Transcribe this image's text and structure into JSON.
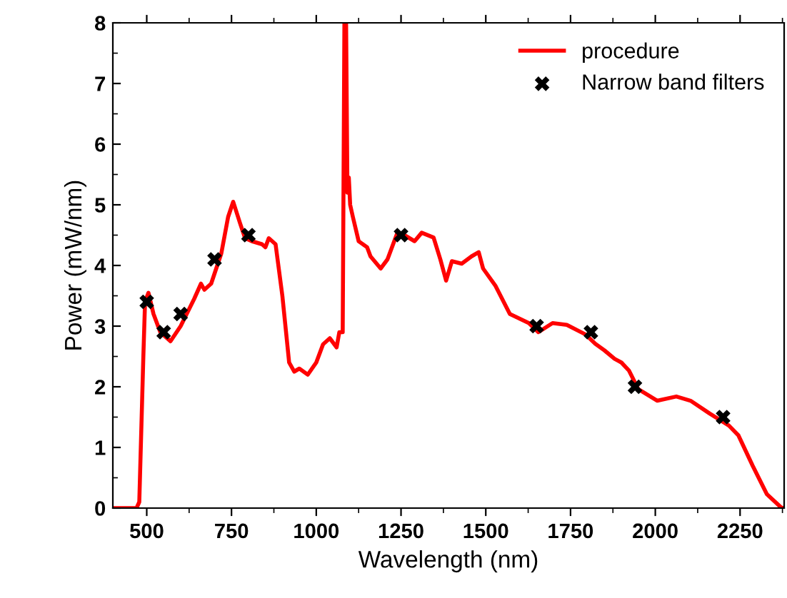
{
  "chart_data": {
    "type": "line",
    "xlabel": "Wavelength (nm)",
    "ylabel": "Power (mW/nm)",
    "xlim": [
      400,
      2380
    ],
    "xticks": [
      500,
      750,
      1000,
      1250,
      1500,
      1750,
      2000,
      2250
    ],
    "ylim": [
      0,
      8
    ],
    "yticks": [
      0,
      1,
      2,
      3,
      4,
      5,
      6,
      7,
      8
    ],
    "legend": "top right",
    "grid": false,
    "series": [
      {
        "name": "procedure",
        "color": "#ff0000",
        "marker": "none",
        "line_style": "solid",
        "x": [
          400,
          470,
          478,
          485,
          490,
          495,
          505,
          520,
          540,
          570,
          600,
          640,
          660,
          670,
          690,
          720,
          740,
          755,
          775,
          790,
          810,
          840,
          850,
          860,
          880,
          900,
          920,
          935,
          950,
          975,
          1000,
          1020,
          1040,
          1060,
          1068,
          1078,
          1083,
          1088,
          1092,
          1096,
          1100,
          1108,
          1125,
          1150,
          1160,
          1190,
          1210,
          1240,
          1260,
          1290,
          1311,
          1346,
          1366,
          1383,
          1400,
          1429,
          1458,
          1479,
          1492,
          1528,
          1571,
          1627,
          1655,
          1697,
          1739,
          1795,
          1823,
          1850,
          1880,
          1900,
          1922,
          1950,
          2006,
          2062,
          2104,
          2160,
          2217,
          2245,
          2287,
          2329,
          2371,
          2380
        ],
        "values": [
          0,
          0,
          0.1,
          1.5,
          2.5,
          3.4,
          3.55,
          3.2,
          2.9,
          2.75,
          3.0,
          3.45,
          3.7,
          3.6,
          3.7,
          4.2,
          4.8,
          5.05,
          4.7,
          4.45,
          4.4,
          4.35,
          4.3,
          4.45,
          4.35,
          3.5,
          2.4,
          2.25,
          2.3,
          2.2,
          2.4,
          2.7,
          2.8,
          2.65,
          2.9,
          2.9,
          8,
          8,
          5.2,
          5.45,
          5.0,
          4.8,
          4.4,
          4.3,
          4.15,
          3.95,
          4.1,
          4.55,
          4.5,
          4.4,
          4.54,
          4.46,
          4.1,
          3.75,
          4.07,
          4.03,
          4.15,
          4.22,
          3.95,
          3.67,
          3.2,
          3.05,
          2.9,
          3.05,
          3.02,
          2.86,
          2.71,
          2.6,
          2.46,
          2.4,
          2.27,
          1.96,
          1.77,
          1.84,
          1.77,
          1.56,
          1.36,
          1.2,
          0.7,
          0.23,
          0.01,
          0
        ]
      },
      {
        "name": "Narrow band filters",
        "type": "scatter",
        "color": "#000000",
        "marker": "cross",
        "x": [
          500,
          550,
          600,
          700,
          800,
          1250,
          1650,
          1810,
          1940,
          2200
        ],
        "values": [
          3.4,
          2.9,
          3.2,
          4.1,
          4.5,
          4.5,
          3.0,
          2.9,
          2.0,
          1.5
        ]
      }
    ]
  }
}
